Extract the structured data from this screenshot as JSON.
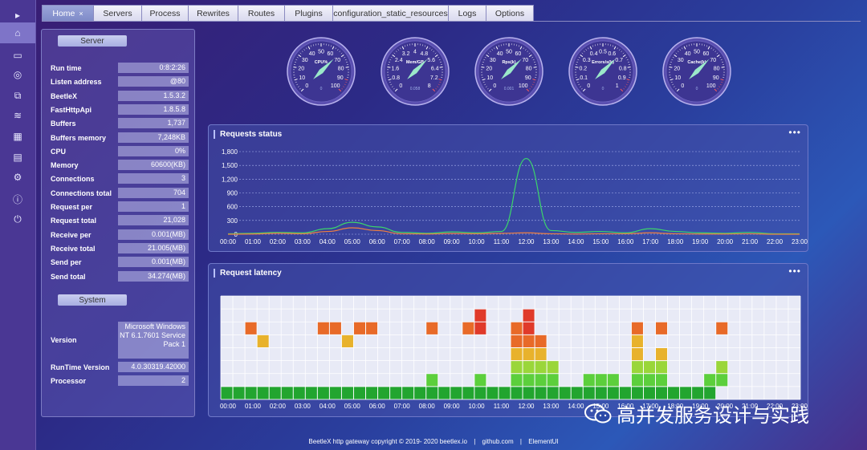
{
  "sidebar": {
    "items": [
      {
        "icon": "expand-arrow-icon",
        "glyph": "▸"
      },
      {
        "icon": "home-icon",
        "glyph": "⌂"
      },
      {
        "icon": "monitor-icon",
        "glyph": "▭"
      },
      {
        "icon": "chip-icon",
        "glyph": "◎"
      },
      {
        "icon": "link-icon",
        "glyph": "⧉"
      },
      {
        "icon": "database-icon",
        "glyph": "≋"
      },
      {
        "icon": "grid-icon",
        "glyph": "▦"
      },
      {
        "icon": "document-icon",
        "glyph": "▤"
      },
      {
        "icon": "settings-icon",
        "glyph": "⚙"
      },
      {
        "icon": "info-icon",
        "glyph": "ⓘ"
      },
      {
        "icon": "power-icon",
        "glyph": "⏻"
      }
    ]
  },
  "tabs": [
    {
      "label": "Home",
      "close": "×",
      "active": true
    },
    {
      "label": "Servers"
    },
    {
      "label": "Process"
    },
    {
      "label": "Rewrites"
    },
    {
      "label": "Routes"
    },
    {
      "label": "Plugins"
    },
    {
      "label": "configuration_static_resources"
    },
    {
      "label": "Logs"
    },
    {
      "label": "Options"
    }
  ],
  "server": {
    "title": "Server",
    "rows": [
      {
        "k": "Run time",
        "v": "0:8:2:26"
      },
      {
        "k": "Listen address",
        "v": "@80"
      },
      {
        "k": "BeetleX",
        "v": "1.5.3.2"
      },
      {
        "k": "FastHttpApi",
        "v": "1.8.5.8"
      },
      {
        "k": "Buffers",
        "v": "1,737"
      },
      {
        "k": "Buffers memory",
        "v": "7,248KB"
      },
      {
        "k": "CPU",
        "v": "0%"
      },
      {
        "k": "Memory",
        "v": "60600(KB)"
      },
      {
        "k": "Connections",
        "v": "3"
      },
      {
        "k": "Connections total",
        "v": "704"
      },
      {
        "k": "Request per",
        "v": "1"
      },
      {
        "k": "Request total",
        "v": "21,028"
      },
      {
        "k": "Receive per",
        "v": "0.001(MB)"
      },
      {
        "k": "Receive total",
        "v": "21.005(MB)"
      },
      {
        "k": "Send per",
        "v": "0.001(MB)"
      },
      {
        "k": "Send total",
        "v": "34.274(MB)"
      }
    ]
  },
  "system": {
    "title": "System",
    "rows": [
      {
        "k": "Version",
        "v": "Microsoft Windows NT 6.1.7601 Service Pack 1"
      },
      {
        "k": "RunTime Version",
        "v": "4.0.30319.42000"
      },
      {
        "k": "Processor",
        "v": "2"
      }
    ]
  },
  "gauges": [
    {
      "name": "CPU%",
      "ticks": [
        "0",
        "10",
        "20",
        "30",
        "40",
        "50",
        "60",
        "70",
        "80",
        "90",
        "100"
      ],
      "value": 0,
      "max": 100,
      "readout": "0"
    },
    {
      "name": "Mem/GB",
      "ticks": [
        "0",
        "0.8",
        "1.6",
        "2.4",
        "3.2",
        "4",
        "4.8",
        "5.6",
        "6.4",
        "7.2",
        "8"
      ],
      "value": 0.058,
      "max": 8,
      "readout": "0.058"
    },
    {
      "name": "Rps(k)",
      "ticks": [
        "0",
        "10",
        "20",
        "30",
        "40",
        "50",
        "60",
        "70",
        "80",
        "90",
        "100"
      ],
      "value": 0.001,
      "max": 100,
      "readout": "0.001"
    },
    {
      "name": "Errors/s(k)",
      "ticks": [
        "0",
        "0.1",
        "0.2",
        "0.3",
        "0.4",
        "0.5",
        "0.6",
        "0.7",
        "0.8",
        "0.9",
        "1"
      ],
      "value": 0,
      "max": 1,
      "readout": "0"
    },
    {
      "name": "Cache(k)",
      "ticks": [
        "0",
        "10",
        "20",
        "30",
        "40",
        "50",
        "60",
        "70",
        "80",
        "90",
        "100"
      ],
      "value": 0,
      "max": 100,
      "readout": "0"
    }
  ],
  "chart_data": [
    {
      "type": "line",
      "title": "Requests status",
      "x": [
        "00:00",
        "01:00",
        "02:00",
        "03:00",
        "04:00",
        "05:00",
        "06:00",
        "07:00",
        "08:00",
        "09:00",
        "10:00",
        "11:00",
        "12:00",
        "13:00",
        "14:00",
        "15:00",
        "16:00",
        "17:00",
        "18:00",
        "19:00",
        "20:00",
        "21:00",
        "22:00",
        "23:00"
      ],
      "ylim": [
        0,
        1800
      ],
      "yticks": [
        "0",
        "300",
        "600",
        "900",
        "1,200",
        "1,500",
        "1,800"
      ],
      "grid": true,
      "series": [
        {
          "color": "#3cd66a",
          "values": [
            10,
            20,
            40,
            30,
            120,
            260,
            160,
            40,
            20,
            50,
            30,
            60,
            1650,
            80,
            40,
            60,
            30,
            120,
            60,
            30,
            20,
            40,
            10,
            10
          ]
        },
        {
          "color": "#f08040",
          "values": [
            0,
            5,
            20,
            10,
            60,
            140,
            80,
            10,
            5,
            15,
            10,
            20,
            30,
            10,
            5,
            10,
            10,
            30,
            10,
            5,
            5,
            10,
            0,
            0
          ]
        }
      ]
    },
    {
      "type": "heatmap",
      "title": "Request latency",
      "x": [
        "00:00",
        "01:00",
        "02:00",
        "03:00",
        "04:00",
        "05:00",
        "06:00",
        "07:00",
        "08:00",
        "09:00",
        "10:00",
        "11:00",
        "12:00",
        "13:00",
        "14:00",
        "15:00",
        "16:00",
        "17:00",
        "18:00",
        "19:00",
        "20:00",
        "21:00",
        "22:00",
        "23:00"
      ],
      "rows": 8,
      "columns": 48,
      "cells": [
        {
          "c": 0,
          "r": 0,
          "n": 1
        }
      ]
    }
  ],
  "footer": {
    "copyright": "BeetleX http gateway copyright © 2019- 2020 beetlex.io",
    "sep1": "|",
    "link1": "github.com",
    "sep2": "|",
    "link2": "ElementUI"
  },
  "watermark": {
    "text": "高并发服务设计与实践"
  }
}
